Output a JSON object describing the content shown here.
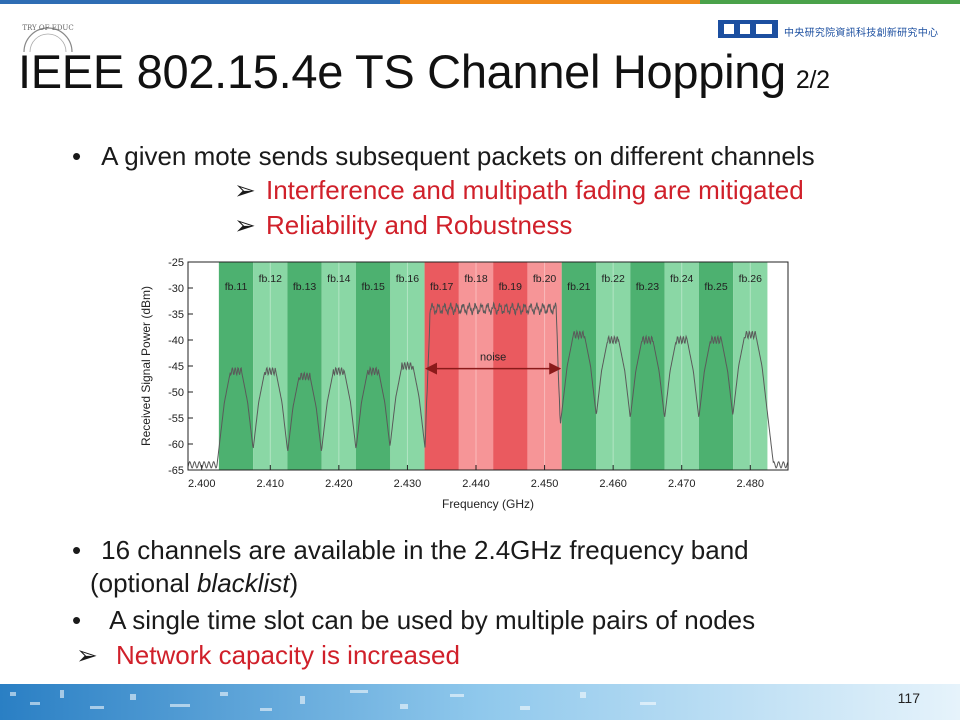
{
  "header": {
    "title": "IEEE 802.15.4e TS Channel Hopping",
    "title_suffix": "2/2",
    "seal_text": "TRY OF EDUC",
    "logo_text": "中央研究院資訊科技創新研究中心",
    "accent_colors": [
      "#2e6db4",
      "#f08a1c",
      "#4aa24a"
    ]
  },
  "bullets_top": {
    "main": "A given mote sends subsequent packets on different channels",
    "sub": [
      "Interference and multipath fading are mitigated",
      "Reliability and Robustness"
    ]
  },
  "chart_data": {
    "type": "area",
    "xlabel": "Frequency (GHz)",
    "ylabel": "Received Signal Power (dBm)",
    "xlim": [
      2.398,
      2.4855
    ],
    "ylim": [
      -65,
      -25
    ],
    "x_ticks": [
      "2.400",
      "2.410",
      "2.420",
      "2.430",
      "2.440",
      "2.450",
      "2.460",
      "2.470",
      "2.480"
    ],
    "y_ticks": [
      "-25",
      "-30",
      "-35",
      "-40",
      "-45",
      "-50",
      "-55",
      "-60",
      "-65"
    ],
    "channels": [
      {
        "label": "fb.11",
        "center": 2.405,
        "peak": -46
      },
      {
        "label": "fb.12",
        "center": 2.41,
        "peak": -46
      },
      {
        "label": "fb.13",
        "center": 2.415,
        "peak": -47
      },
      {
        "label": "fb.14",
        "center": 2.42,
        "peak": -46
      },
      {
        "label": "fb.15",
        "center": 2.425,
        "peak": -46
      },
      {
        "label": "fb.16",
        "center": 2.43,
        "peak": -45
      },
      {
        "label": "fb.17",
        "center": 2.435,
        "peak": -34
      },
      {
        "label": "fb.18",
        "center": 2.44,
        "peak": -34
      },
      {
        "label": "fb.19",
        "center": 2.445,
        "peak": -34
      },
      {
        "label": "fb.20",
        "center": 2.45,
        "peak": -34
      },
      {
        "label": "fb.21",
        "center": 2.455,
        "peak": -39
      },
      {
        "label": "fb.22",
        "center": 2.46,
        "peak": -40
      },
      {
        "label": "fb.23",
        "center": 2.465,
        "peak": -40
      },
      {
        "label": "fb.24",
        "center": 2.47,
        "peak": -40
      },
      {
        "label": "fb.25",
        "center": 2.475,
        "peak": -40
      },
      {
        "label": "fb.26",
        "center": 2.48,
        "peak": -39
      }
    ],
    "noise_label": "noise",
    "noise_range": [
      2.4325,
      2.4525
    ],
    "noise_level": -34,
    "floor_level": -64,
    "colors": {
      "green_dark": "#3aa860",
      "green_light": "#7dd39b",
      "red_dark": "#e8484e",
      "red_light": "#f58a8c"
    }
  },
  "bullets_bottom": {
    "b1_line1": "16 channels are available in the 2.4GHz frequency band",
    "b1_line2_pre": "(optional ",
    "b1_line2_italic": "blacklist",
    "b1_line2_post": ")",
    "b2": "A single time slot can be used by multiple pairs of nodes",
    "b3": "Network capacity is increased"
  },
  "footer": {
    "page_number": "117"
  }
}
